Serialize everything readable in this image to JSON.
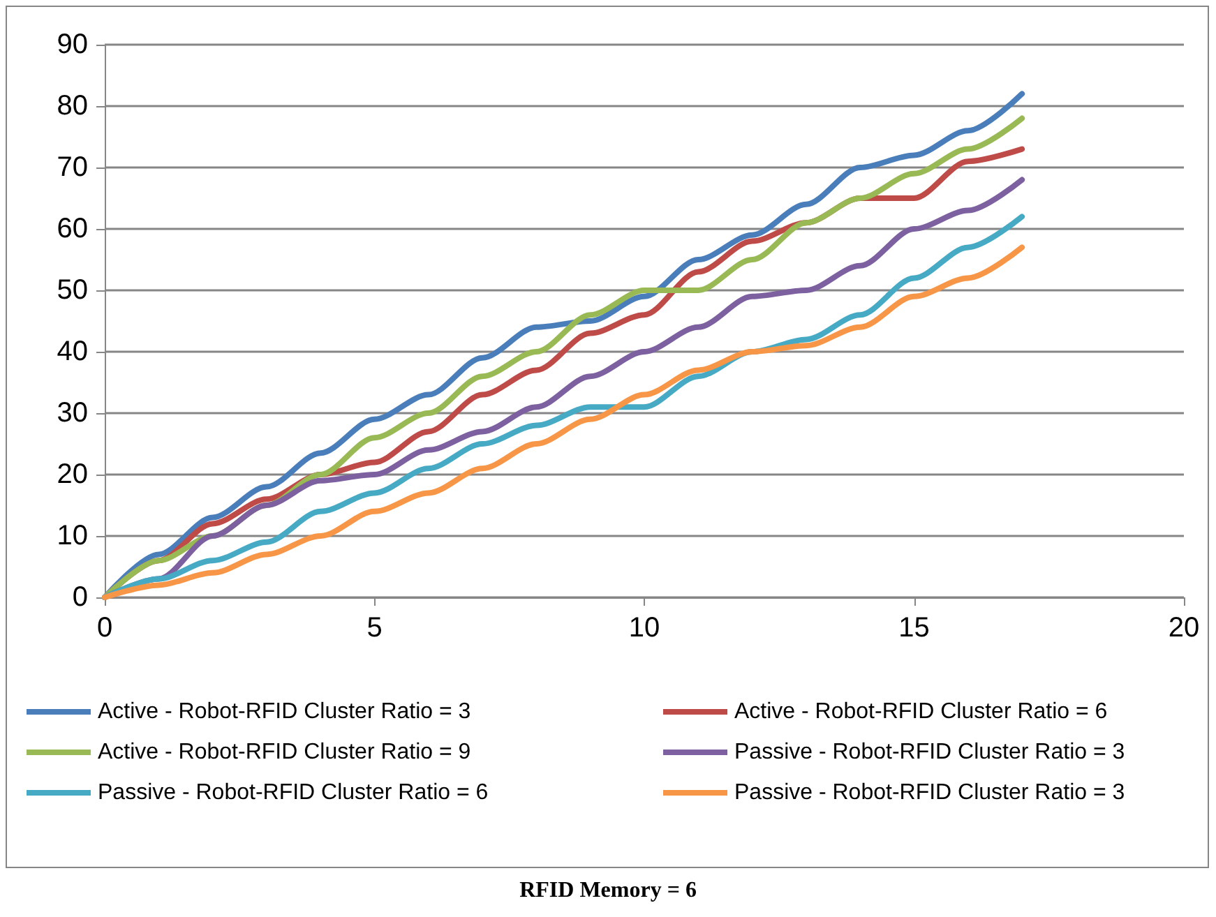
{
  "chart_data": {
    "type": "line",
    "title": "RFID Memory = 6",
    "x": [
      0,
      1,
      2,
      3,
      4,
      5,
      6,
      7,
      8,
      9,
      10,
      11,
      12,
      13,
      14,
      15,
      16,
      17
    ],
    "series": [
      {
        "name": "Active - Robot-RFID Cluster Ratio = 3",
        "color": "#4a7ebb",
        "values": [
          0,
          7,
          13,
          18,
          23.5,
          29,
          33,
          39,
          44,
          45,
          49,
          55,
          59,
          64,
          70,
          72,
          76,
          82
        ]
      },
      {
        "name": "Active - Robot-RFID Cluster Ratio = 6",
        "color": "#be4b48",
        "values": [
          0,
          6,
          12,
          16,
          20,
          22,
          27,
          33,
          37,
          43,
          46,
          53,
          58,
          61,
          65,
          65,
          71,
          73
        ]
      },
      {
        "name": "Active - Robot-RFID Cluster Ratio = 9",
        "color": "#98b954",
        "values": [
          0,
          6,
          10,
          15,
          20,
          26,
          30,
          36,
          40,
          46,
          50,
          50,
          55,
          61,
          65,
          69,
          73,
          78
        ]
      },
      {
        "name": "Passive - Robot-RFID Cluster Ratio = 3",
        "color": "#7d60a0",
        "values": [
          0,
          3,
          10,
          15,
          19,
          20,
          24,
          27,
          31,
          36,
          40,
          44,
          49,
          50,
          54,
          60,
          63,
          68
        ]
      },
      {
        "name": "Passive - Robot-RFID Cluster Ratio = 6",
        "color": "#46aac5",
        "values": [
          0,
          3,
          6,
          9,
          14,
          17,
          21,
          25,
          28,
          31,
          31,
          36,
          40,
          42,
          46,
          52,
          57,
          62
        ]
      },
      {
        "name": "Passive - Robot-RFID Cluster Ratio = 3",
        "color": "#f79646",
        "values": [
          0,
          2,
          4,
          7,
          10,
          14,
          17,
          21,
          25,
          29,
          33,
          37,
          40,
          41,
          44,
          49,
          52,
          57
        ]
      }
    ],
    "xlim": [
      0,
      20
    ],
    "xticks": [
      0,
      5,
      10,
      15,
      20
    ],
    "ylim": [
      0,
      90
    ],
    "yticks": [
      0,
      10,
      20,
      30,
      40,
      50,
      60,
      70,
      80,
      90
    ],
    "grid": "y",
    "legend": "bottom",
    "marker": "none",
    "line_style": "solid"
  }
}
